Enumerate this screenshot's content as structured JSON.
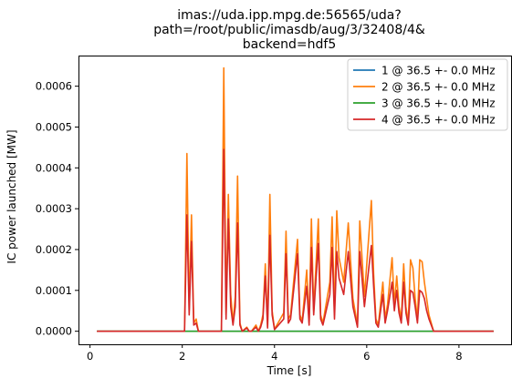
{
  "chart_data": {
    "type": "line",
    "title_lines": [
      "imas://uda.ipp.mpg.de:56565/uda?",
      "path=/root/public/imasdb/aug/3/32408/4&",
      "backend=hdf5"
    ],
    "xlabel": "Time [s]",
    "ylabel": "IC power launched [MW]",
    "xlim": [
      -0.25,
      9.15
    ],
    "ylim": [
      -3.2e-05,
      0.000675
    ],
    "xticks": [
      0,
      2,
      4,
      6,
      8
    ],
    "xtick_labels": [
      "0",
      "2",
      "4",
      "6",
      "8"
    ],
    "yticks": [
      0,
      0.0001,
      0.0002,
      0.0003,
      0.0004,
      0.0005,
      0.0006
    ],
    "ytick_labels": [
      "0.0000",
      "0.0001",
      "0.0002",
      "0.0003",
      "0.0004",
      "0.0005",
      "0.0006"
    ],
    "grid": false,
    "legend_position": "top-right",
    "series": [
      {
        "name": "1 @ 36.5 +- 0.0 MHz",
        "color": "#1f77b4",
        "x": [
          0.15,
          8.75
        ],
        "y": [
          0,
          0
        ]
      },
      {
        "name": "2 @ 36.5 +- 0.0 MHz",
        "color": "#ff7f0e",
        "x": [
          0.15,
          2.05,
          2.1,
          2.15,
          2.2,
          2.25,
          2.3,
          2.35,
          2.45,
          2.85,
          2.9,
          2.95,
          3.0,
          3.05,
          3.1,
          3.15,
          3.2,
          3.25,
          3.3,
          3.4,
          3.45,
          3.5,
          3.6,
          3.65,
          3.7,
          3.75,
          3.8,
          3.85,
          3.9,
          3.95,
          4.0,
          4.2,
          4.25,
          4.3,
          4.35,
          4.5,
          4.55,
          4.6,
          4.7,
          4.75,
          4.8,
          4.85,
          4.95,
          5.0,
          5.05,
          5.2,
          5.25,
          5.3,
          5.35,
          5.4,
          5.5,
          5.6,
          5.7,
          5.8,
          5.85,
          5.95,
          6.1,
          6.15,
          6.2,
          6.25,
          6.35,
          6.4,
          6.45,
          6.55,
          6.6,
          6.65,
          6.7,
          6.75,
          6.8,
          6.85,
          6.9,
          6.95,
          7.0,
          7.05,
          7.1,
          7.15,
          7.2,
          7.25,
          7.3,
          7.35,
          7.45,
          7.55,
          8.75
        ],
        "y": [
          0,
          0,
          0.000435,
          5e-05,
          0.000285,
          2e-05,
          3e-05,
          0,
          0,
          0,
          0.000645,
          4e-05,
          0.000335,
          9e-05,
          2e-05,
          8.5e-05,
          0.00038,
          2e-05,
          0,
          1e-05,
          0,
          0,
          1.5e-05,
          0,
          1.5e-05,
          4e-05,
          0.000165,
          1e-05,
          0.000335,
          5e-05,
          5e-06,
          4.5e-05,
          0.000245,
          3e-05,
          4e-05,
          0.000225,
          4e-05,
          2.5e-05,
          0.00015,
          2e-05,
          0.000275,
          5e-05,
          0.000275,
          4e-05,
          2e-05,
          0.00012,
          0.00028,
          4e-05,
          0.000295,
          0.00018,
          0.00012,
          0.000265,
          8e-05,
          1.5e-05,
          0.00027,
          8.5e-05,
          0.00032,
          0.00014,
          3e-05,
          1.5e-05,
          0.00012,
          3e-05,
          6.5e-05,
          0.00018,
          6.5e-05,
          0.000135,
          6e-05,
          3e-05,
          0.000165,
          6e-05,
          2e-05,
          0.000175,
          0.000155,
          8e-05,
          3e-05,
          0.000175,
          0.00017,
          0.00012,
          8e-05,
          4e-05,
          0,
          0,
          0
        ]
      },
      {
        "name": "3 @ 36.5 +- 0.0 MHz",
        "color": "#2ca02c",
        "x": [
          0.15,
          8.75
        ],
        "y": [
          0,
          0
        ]
      },
      {
        "name": "4 @ 36.5 +- 0.0 MHz",
        "color": "#d62728",
        "x": [
          0.15,
          2.05,
          2.1,
          2.15,
          2.2,
          2.25,
          2.3,
          2.35,
          2.45,
          2.85,
          2.9,
          2.95,
          3.0,
          3.05,
          3.1,
          3.15,
          3.2,
          3.25,
          3.3,
          3.4,
          3.45,
          3.5,
          3.6,
          3.65,
          3.7,
          3.75,
          3.8,
          3.85,
          3.9,
          3.95,
          4.0,
          4.2,
          4.25,
          4.3,
          4.35,
          4.5,
          4.55,
          4.6,
          4.7,
          4.75,
          4.8,
          4.85,
          4.95,
          5.0,
          5.05,
          5.2,
          5.25,
          5.3,
          5.35,
          5.4,
          5.5,
          5.6,
          5.7,
          5.8,
          5.85,
          5.95,
          6.1,
          6.15,
          6.2,
          6.25,
          6.35,
          6.4,
          6.45,
          6.55,
          6.6,
          6.65,
          6.7,
          6.75,
          6.8,
          6.85,
          6.9,
          6.95,
          7.0,
          7.05,
          7.1,
          7.15,
          7.2,
          7.25,
          7.3,
          7.35,
          7.45,
          7.55,
          8.75
        ],
        "y": [
          0,
          0,
          0.000285,
          4e-05,
          0.00022,
          1.5e-05,
          2e-05,
          0,
          0,
          0,
          0.000445,
          3e-05,
          0.000275,
          6e-05,
          1.5e-05,
          6e-05,
          0.000265,
          1.5e-05,
          0,
          8e-06,
          0,
          0,
          1e-05,
          0,
          1e-05,
          3e-05,
          0.000135,
          8e-06,
          0.000235,
          4e-05,
          4e-06,
          3e-05,
          0.00019,
          2e-05,
          3e-05,
          0.00019,
          3e-05,
          2e-05,
          0.00011,
          1.5e-05,
          0.000205,
          4e-05,
          0.000215,
          3e-05,
          1.5e-05,
          9e-05,
          0.000205,
          3e-05,
          0.000195,
          0.00013,
          9e-05,
          0.000195,
          6e-05,
          1e-05,
          0.000195,
          6e-05,
          0.00021,
          0.00011,
          2e-05,
          1e-05,
          9e-05,
          2e-05,
          5e-05,
          0.00012,
          5e-05,
          0.0001,
          4.5e-05,
          2e-05,
          0.00012,
          4.5e-05,
          1.5e-05,
          0.0001,
          9.5e-05,
          6e-05,
          2e-05,
          0.0001,
          9.5e-05,
          8e-05,
          5e-05,
          3e-05,
          0,
          0,
          0
        ]
      }
    ]
  }
}
